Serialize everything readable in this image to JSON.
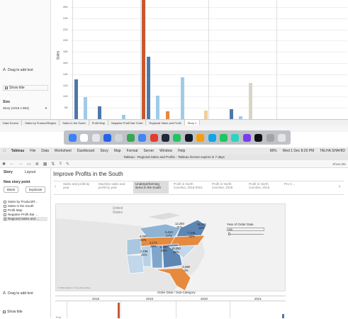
{
  "top": {
    "sidebar": {
      "drag_text": "Drag to add text",
      "show_title": "Show title",
      "size_label": "Size",
      "size_value": "Story (1016 x 964)"
    },
    "y_ticks": [
      "26K",
      "24K",
      "22K",
      "20K",
      "18K",
      "16K",
      "14K",
      "12K",
      "10K",
      "8K"
    ],
    "y_axis_label": "Sales",
    "tabs": [
      "Data Source",
      "Sales by Product/Region",
      "Sales in the South",
      "Profit Map",
      "Negative Profit Bar Chart",
      "Regional Sales and Profit",
      "Story 1"
    ]
  },
  "menubar": {
    "apple": "",
    "app": "Tableau",
    "items": [
      "File",
      "Data",
      "Worksheet",
      "Dashboard",
      "Story",
      "Map",
      "Format",
      "Server",
      "Window",
      "Help"
    ],
    "battery": "98%",
    "datetime": "Wed 1 Dec  8:20 PM",
    "user": "TALHA SHAHID"
  },
  "window_title": "Tableau - Regional Sales and Profits - Tableau license expires in 7 days",
  "show_me": "Show Me",
  "story_panel": {
    "tab_story": "Story",
    "tab_layout": "Layout",
    "new_story_point": "New story point",
    "blank": "Blank",
    "duplicate": "Duplicate",
    "sheets": [
      "Sales by Product/R...",
      "Sales in the South",
      "Profit Map",
      "Negative Profit Bar ...",
      "Regional Sales and ..."
    ],
    "drag_text": "Drag to add text",
    "show_title": "Show title"
  },
  "story": {
    "title": "Improve Profits in the South",
    "nav": [
      "Sales and profit by year",
      "Machine sales and profit by year",
      "Underperforming items in the South",
      "Profit in North Carolina, 2018-2021",
      "Profit in North Carolina, 2018",
      "Profit in North Carolina, 2019",
      "Pro C..."
    ],
    "map_labels": {
      "united_states": "United States",
      "values": [
        "12,250\n31%",
        "18,336\n25%",
        "-5,342\n-17%",
        "-7,491\n-22%",
        "4,009\n34%",
        "3,173\n29%",
        "5,787\n30%",
        "16,250\n33%",
        "2,196\n24%",
        "-3,399\n-4%"
      ]
    },
    "filter": {
      "label": "Year of Order Date",
      "value": "(All)"
    },
    "attribution": "© 2021 Mapbox © OpenStreetMap",
    "bottom_header": "Order Date / Sub-Category",
    "years": [
      "2018",
      "2019",
      "2020",
      "2021"
    ],
    "bottom_axis": "Prof"
  }
}
